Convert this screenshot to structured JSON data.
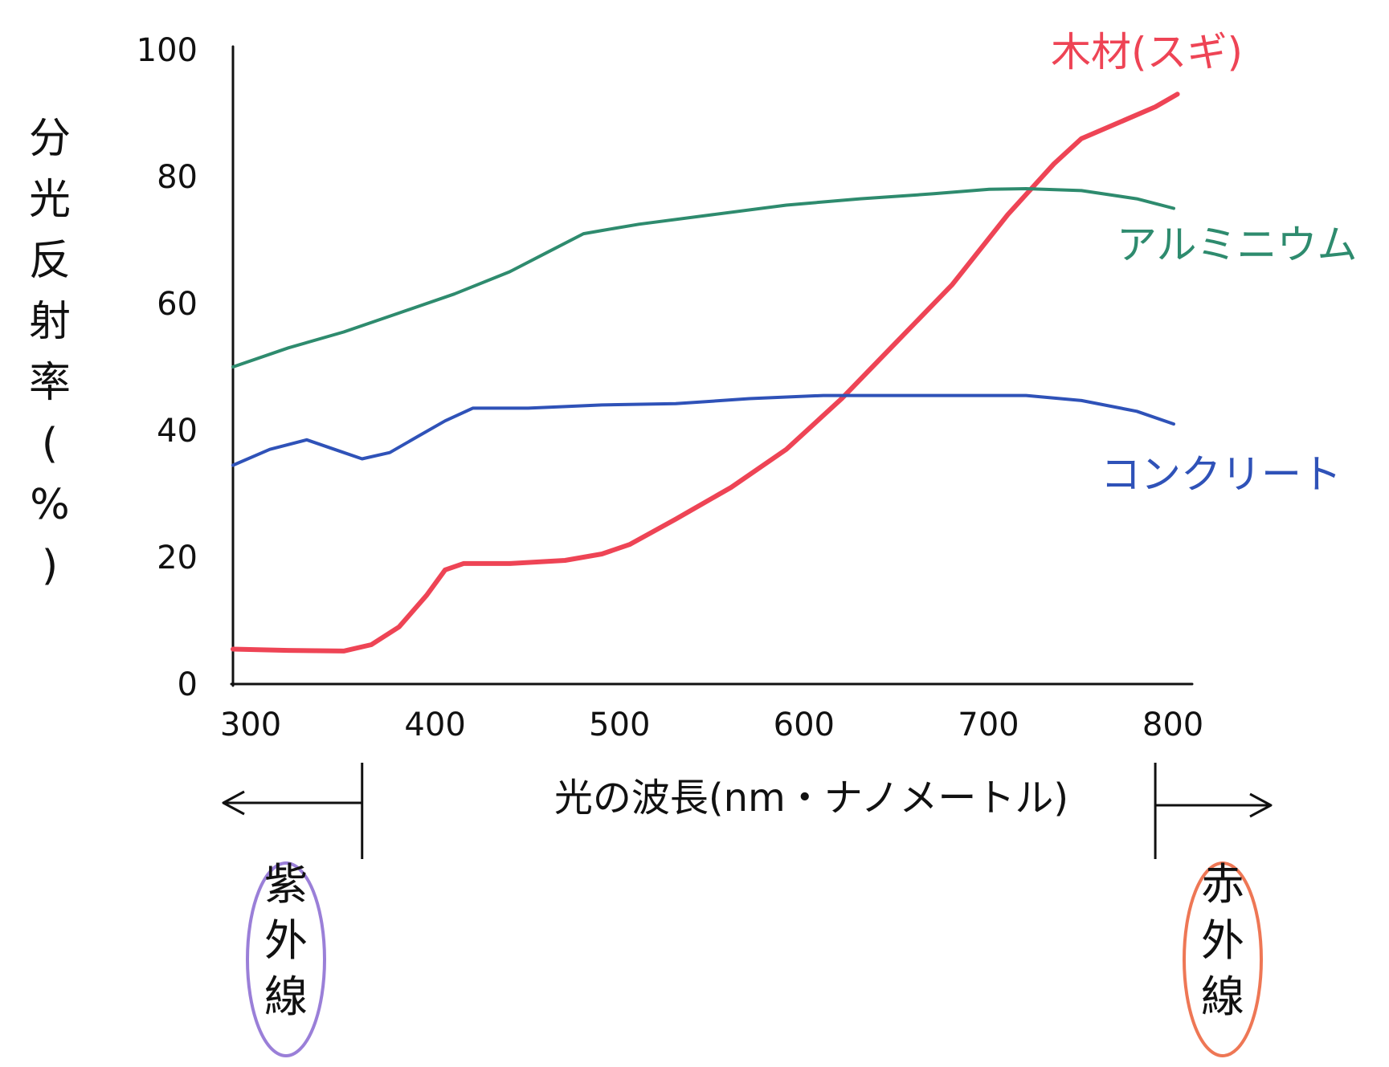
{
  "chart_data": {
    "type": "line",
    "title": "",
    "ylabel_chars": [
      "分",
      "光",
      "反",
      "射",
      "率",
      "(",
      "%",
      ")"
    ],
    "xlabel": "光の波長(nm・ナノメートル)",
    "xlim": [
      300,
      820
    ],
    "ylim": [
      0,
      100
    ],
    "x_ticks": [
      300,
      400,
      500,
      600,
      700,
      800
    ],
    "y_ticks": [
      0,
      20,
      40,
      60,
      80,
      100
    ],
    "grid": false,
    "legend": "inline labels at right end of each line",
    "series": [
      {
        "name": "木材(スギ)",
        "color": "#ee4455",
        "points": [
          [
            300,
            5.5
          ],
          [
            330,
            5.3
          ],
          [
            360,
            5.2
          ],
          [
            375,
            6.2
          ],
          [
            390,
            9
          ],
          [
            405,
            14
          ],
          [
            415,
            18
          ],
          [
            425,
            19
          ],
          [
            450,
            19
          ],
          [
            480,
            19.5
          ],
          [
            500,
            20.5
          ],
          [
            515,
            22
          ],
          [
            540,
            26
          ],
          [
            570,
            31
          ],
          [
            600,
            37
          ],
          [
            630,
            45
          ],
          [
            660,
            54
          ],
          [
            690,
            63
          ],
          [
            720,
            74
          ],
          [
            745,
            82
          ],
          [
            760,
            86
          ],
          [
            780,
            88.5
          ],
          [
            800,
            91
          ],
          [
            812,
            93
          ]
        ]
      },
      {
        "name": "アルミニウム",
        "color": "#2e8b6e",
        "points": [
          [
            300,
            50
          ],
          [
            330,
            53
          ],
          [
            360,
            55.5
          ],
          [
            390,
            58.5
          ],
          [
            420,
            61.5
          ],
          [
            450,
            65
          ],
          [
            470,
            68
          ],
          [
            490,
            71
          ],
          [
            500,
            71.5
          ],
          [
            520,
            72.5
          ],
          [
            560,
            74
          ],
          [
            600,
            75.5
          ],
          [
            640,
            76.5
          ],
          [
            680,
            77.3
          ],
          [
            710,
            78
          ],
          [
            730,
            78.1
          ],
          [
            760,
            77.8
          ],
          [
            790,
            76.5
          ],
          [
            810,
            75
          ]
        ]
      },
      {
        "name": "コンクリート",
        "color": "#2f52b8",
        "points": [
          [
            300,
            34.5
          ],
          [
            320,
            37
          ],
          [
            340,
            38.5
          ],
          [
            355,
            37
          ],
          [
            370,
            35.5
          ],
          [
            385,
            36.5
          ],
          [
            400,
            39
          ],
          [
            415,
            41.5
          ],
          [
            430,
            43.5
          ],
          [
            460,
            43.5
          ],
          [
            500,
            44
          ],
          [
            540,
            44.2
          ],
          [
            580,
            45
          ],
          [
            620,
            45.5
          ],
          [
            660,
            45.5
          ],
          [
            700,
            45.5
          ],
          [
            730,
            45.5
          ],
          [
            760,
            44.7
          ],
          [
            790,
            43
          ],
          [
            810,
            41
          ]
        ]
      }
    ],
    "regions": [
      {
        "label": "紫外線",
        "side": "left",
        "boundary": 370,
        "color": "#9a7fd8"
      },
      {
        "label": "赤外線",
        "side": "right",
        "boundary": 800,
        "color": "#ee7755"
      }
    ]
  }
}
